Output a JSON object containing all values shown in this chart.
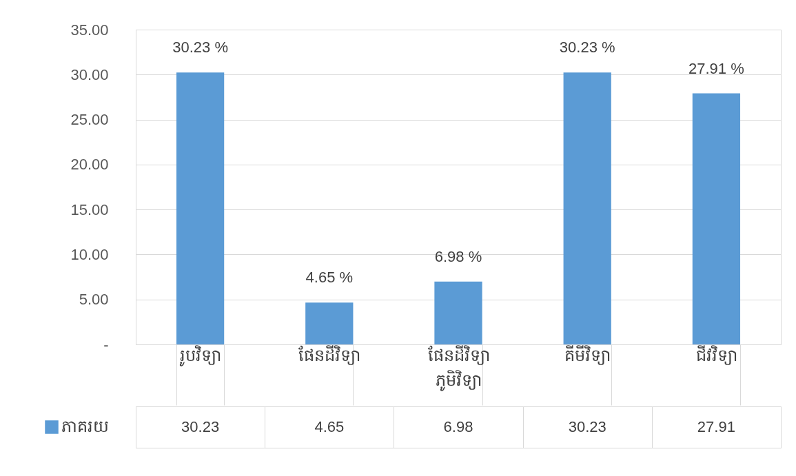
{
  "chart_data": {
    "type": "bar",
    "categories": [
      "រូបវិទ្យា",
      "ផែនដីវិទ្យា",
      "ផែនដីវិទ្យា ភូមិវិទ្យា",
      "គីមីវិទ្យា",
      "ជីវវិទ្យា"
    ],
    "series": [
      {
        "name": "ភាគរយ",
        "color": "#5b9bd5",
        "values": [
          30.23,
          4.65,
          6.98,
          30.23,
          27.91
        ]
      }
    ],
    "annotations": [
      {
        "text": "30.23 %",
        "x": "រូបវិទ្យា",
        "y": 30.23
      },
      {
        "text": "4.65 %",
        "x": "ផែនដីវិទ្យា",
        "y": 4.65
      },
      {
        "text": "6.98 %",
        "x": "ផែនដីវិទ្យា ភូមិវិទ្យា",
        "y": 6.98
      },
      {
        "text": "30.23 %",
        "x": "គីមីវិទ្យា",
        "y": 30.23
      },
      {
        "text": "27.91 %",
        "x": "ជីវវិទ្យា",
        "y": 27.91
      }
    ],
    "data_labels": true,
    "ylim": [
      0,
      35
    ],
    "yticks": [
      {
        "value": 0,
        "label": "-"
      },
      {
        "value": 5,
        "label": "5.00"
      },
      {
        "value": 10,
        "label": "10.00"
      },
      {
        "value": 15,
        "label": "15.00"
      },
      {
        "value": 20,
        "label": "20.00"
      },
      {
        "value": 25,
        "label": "25.00"
      },
      {
        "value": 30,
        "label": "30.00"
      },
      {
        "value": 35,
        "label": "35.00"
      }
    ],
    "grid": "y",
    "legend": "bottom left"
  }
}
